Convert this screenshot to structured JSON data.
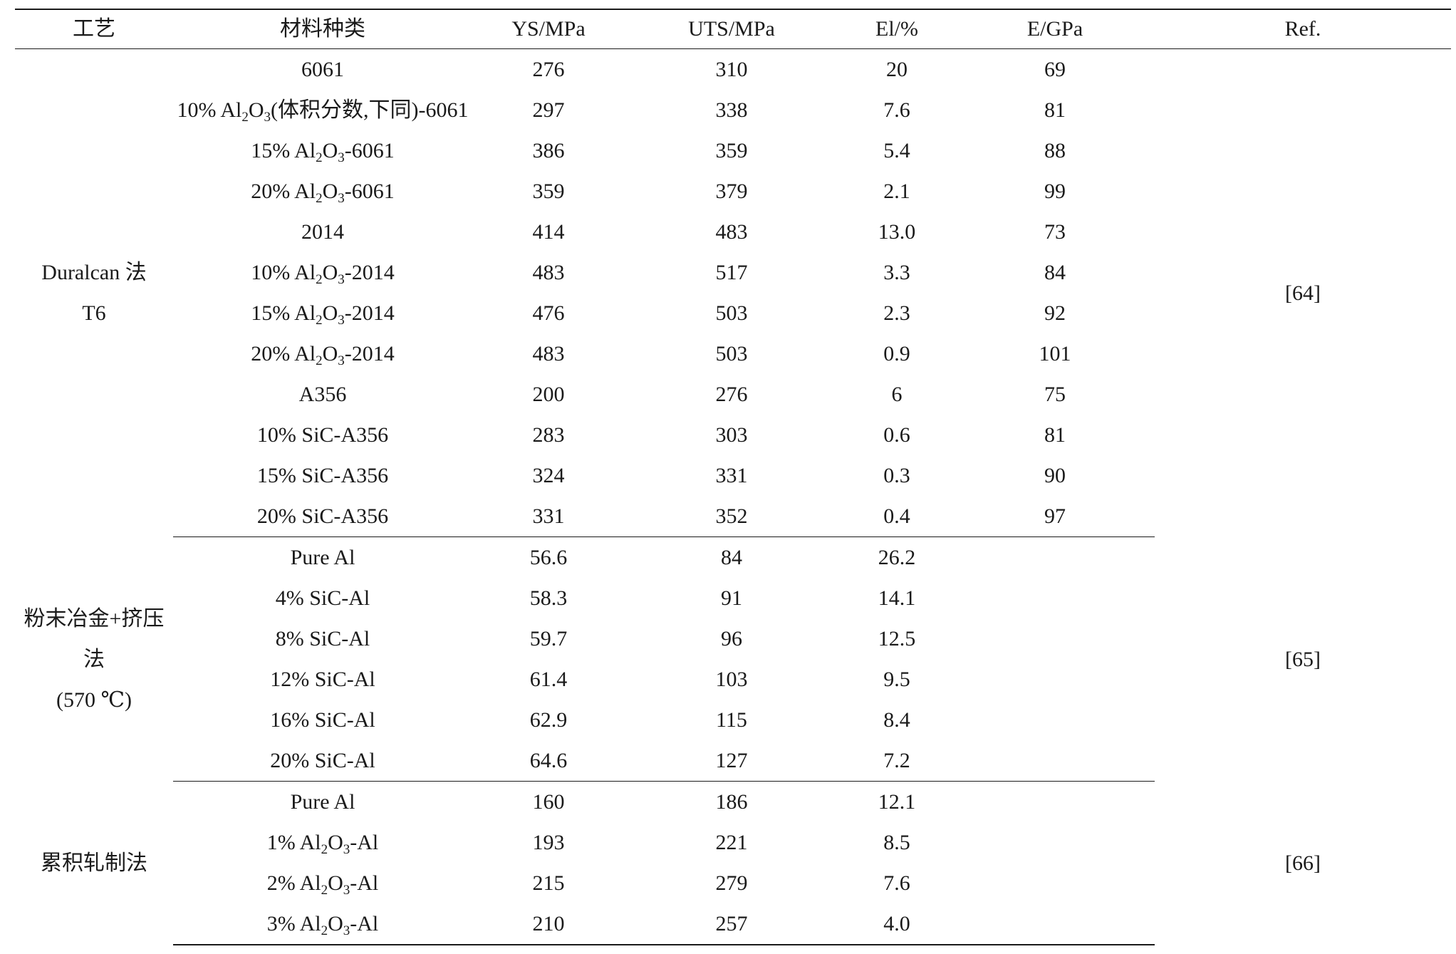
{
  "headers": [
    "工艺",
    "材料种类",
    "YS/MPa",
    "UTS/MPa",
    "El/%",
    "E/GPa",
    "Ref."
  ],
  "groups": [
    {
      "process_lines": [
        "Duralcan 法",
        "T6"
      ],
      "ref": "[64]",
      "rows": [
        {
          "material": [
            "6061"
          ],
          "ys": "276",
          "uts": "310",
          "el": "20",
          "e": "69"
        },
        {
          "material": [
            "10% Al",
            "2",
            "O",
            "3",
            "(体积分数,下同)-6061"
          ],
          "ys": "297",
          "uts": "338",
          "el": "7.6",
          "e": "81"
        },
        {
          "material": [
            "15% Al",
            "2",
            "O",
            "3",
            "-6061"
          ],
          "ys": "386",
          "uts": "359",
          "el": "5.4",
          "e": "88"
        },
        {
          "material": [
            "20% Al",
            "2",
            "O",
            "3",
            "-6061"
          ],
          "ys": "359",
          "uts": "379",
          "el": "2.1",
          "e": "99"
        },
        {
          "material": [
            "2014"
          ],
          "ys": "414",
          "uts": "483",
          "el": "13.0",
          "e": "73"
        },
        {
          "material": [
            "10% Al",
            "2",
            "O",
            "3",
            "-2014"
          ],
          "ys": "483",
          "uts": "517",
          "el": "3.3",
          "e": "84"
        },
        {
          "material": [
            "15% Al",
            "2",
            "O",
            "3",
            "-2014"
          ],
          "ys": "476",
          "uts": "503",
          "el": "2.3",
          "e": "92"
        },
        {
          "material": [
            "20% Al",
            "2",
            "O",
            "3",
            "-2014"
          ],
          "ys": "483",
          "uts": "503",
          "el": "0.9",
          "e": "101"
        },
        {
          "material": [
            "A356"
          ],
          "ys": "200",
          "uts": "276",
          "el": "6",
          "e": "75"
        },
        {
          "material": [
            "10% SiC-A356"
          ],
          "ys": "283",
          "uts": "303",
          "el": "0.6",
          "e": "81"
        },
        {
          "material": [
            "15% SiC-A356"
          ],
          "ys": "324",
          "uts": "331",
          "el": "0.3",
          "e": "90"
        },
        {
          "material": [
            "20% SiC-A356"
          ],
          "ys": "331",
          "uts": "352",
          "el": "0.4",
          "e": "97"
        }
      ]
    },
    {
      "process_lines": [
        "粉末冶金+挤压法",
        "(570 ℃)"
      ],
      "ref": "[65]",
      "rows": [
        {
          "material": [
            "Pure Al"
          ],
          "ys": "56.6",
          "uts": "84",
          "el": "26.2",
          "e": ""
        },
        {
          "material": [
            "4% SiC-Al"
          ],
          "ys": "58.3",
          "uts": "91",
          "el": "14.1",
          "e": ""
        },
        {
          "material": [
            "8% SiC-Al"
          ],
          "ys": "59.7",
          "uts": "96",
          "el": "12.5",
          "e": ""
        },
        {
          "material": [
            "12% SiC-Al"
          ],
          "ys": "61.4",
          "uts": "103",
          "el": "9.5",
          "e": ""
        },
        {
          "material": [
            "16% SiC-Al"
          ],
          "ys": "62.9",
          "uts": "115",
          "el": "8.4",
          "e": ""
        },
        {
          "material": [
            "20% SiC-Al"
          ],
          "ys": "64.6",
          "uts": "127",
          "el": "7.2",
          "e": ""
        }
      ]
    },
    {
      "process_lines": [
        "累积轧制法"
      ],
      "ref": "[66]",
      "rows": [
        {
          "material": [
            "Pure Al"
          ],
          "ys": "160",
          "uts": "186",
          "el": "12.1",
          "e": ""
        },
        {
          "material": [
            "1% Al",
            "2",
            "O",
            "3",
            "-Al"
          ],
          "ys": "193",
          "uts": "221",
          "el": "8.5",
          "e": ""
        },
        {
          "material": [
            "2% Al",
            "2",
            "O",
            "3",
            "-Al"
          ],
          "ys": "215",
          "uts": "279",
          "el": "7.6",
          "e": ""
        },
        {
          "material": [
            "3% Al",
            "2",
            "O",
            "3",
            "-Al"
          ],
          "ys": "210",
          "uts": "257",
          "el": "4.0",
          "e": ""
        }
      ]
    }
  ]
}
